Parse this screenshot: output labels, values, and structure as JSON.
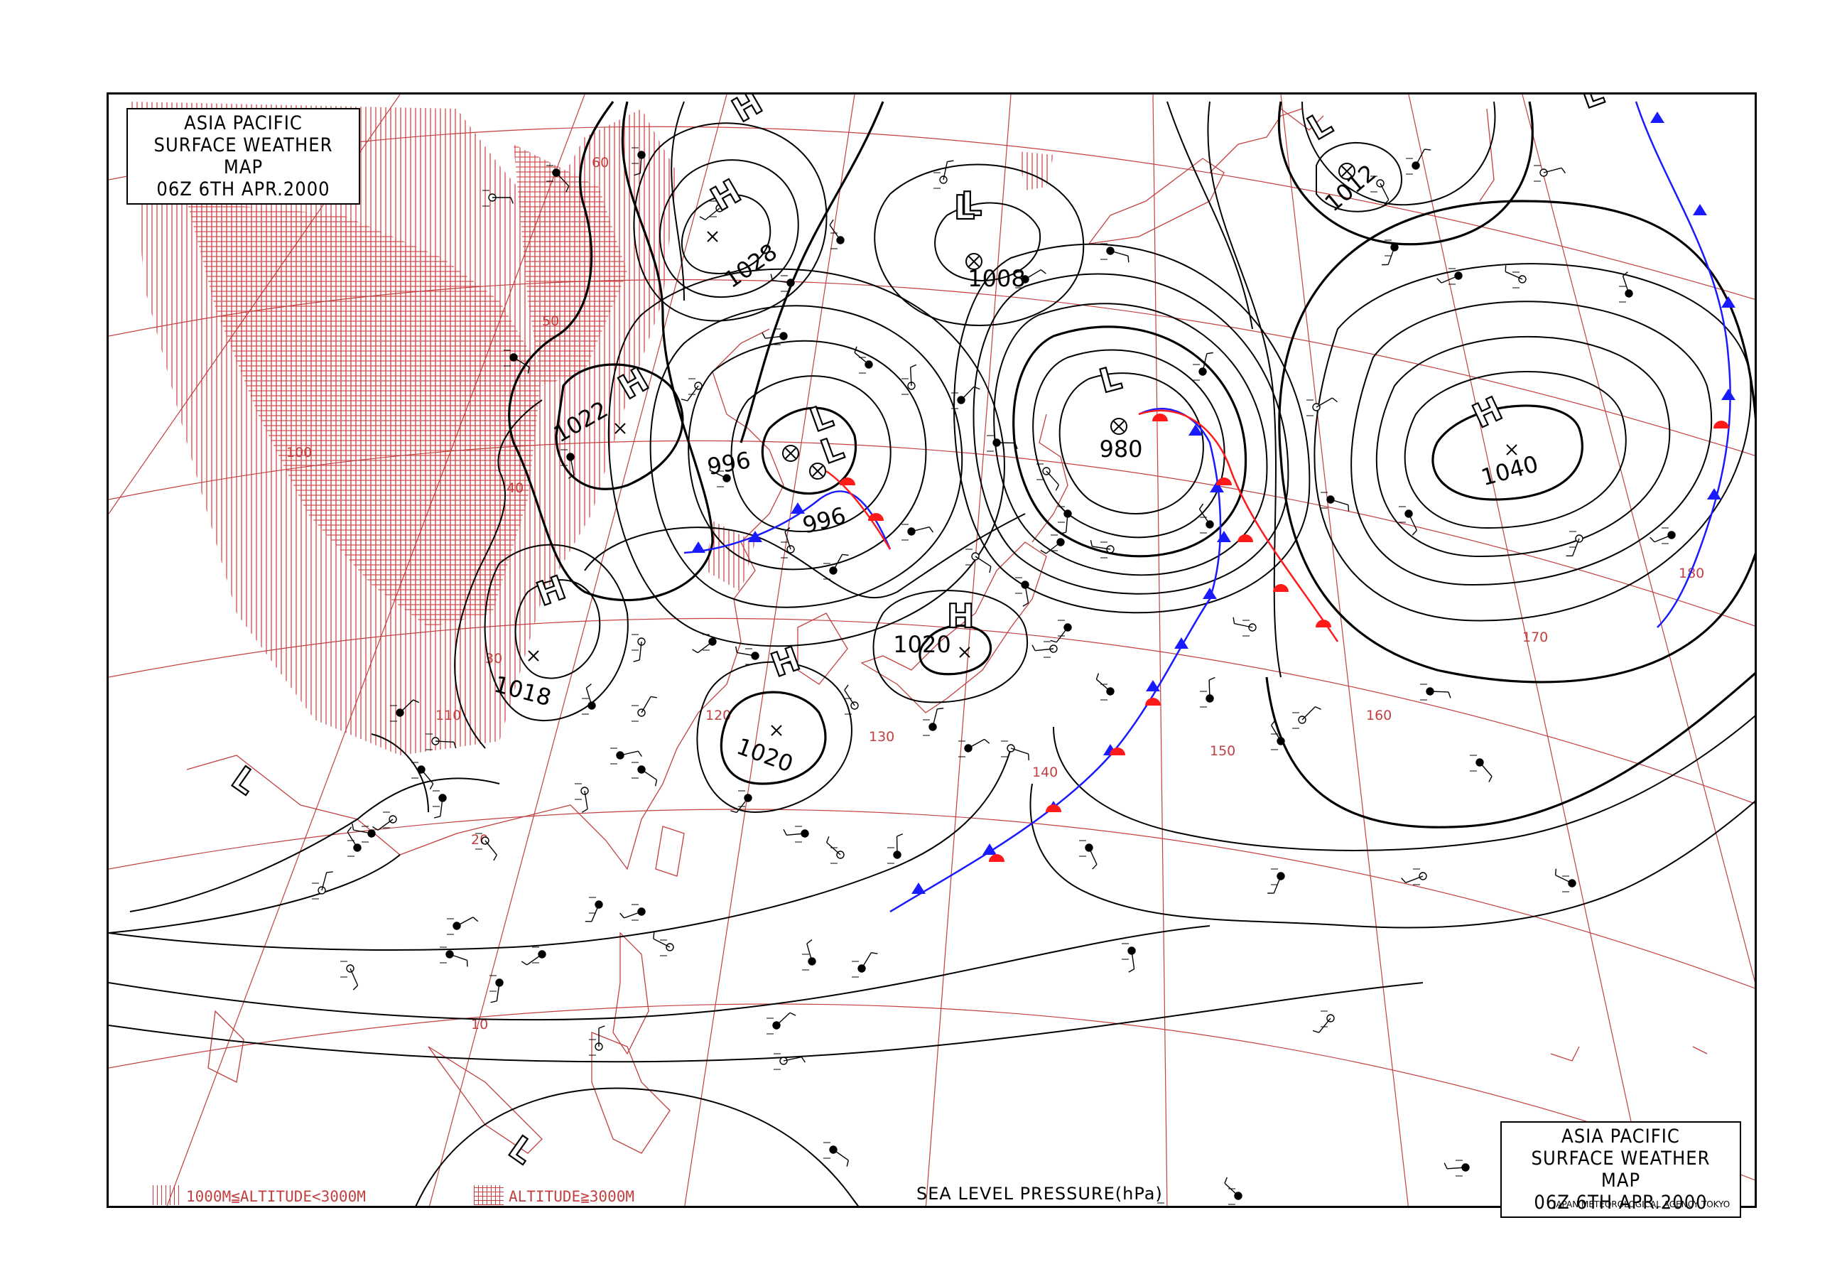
{
  "title": {
    "line1": "ASIA PACIFIC",
    "line2": "SURFACE WEATHER MAP",
    "line3": "06Z   6TH APR.2000"
  },
  "legend": {
    "mid_altitude": "1000M≦ALTITUDE<3000M",
    "high_altitude": "ALTITUDE≧3000M"
  },
  "footer": {
    "field_label": "SEA LEVEL PRESSURE(hPa)",
    "agency": "JAPAN METEOROLOGICAL AGENCY TOKYO"
  },
  "colors": {
    "grid": "#c24040",
    "isobar": "#000000",
    "cold_front": "#1a1aff",
    "warm_front": "#ff1a1a"
  },
  "pressure_systems": [
    {
      "type": "H",
      "value": "1028"
    },
    {
      "type": "L",
      "value": "1008"
    },
    {
      "type": "H",
      "value": "1022"
    },
    {
      "type": "L",
      "value": "996"
    },
    {
      "type": "L",
      "value": "996"
    },
    {
      "type": "L",
      "value": "980"
    },
    {
      "type": "L",
      "value": "1012"
    },
    {
      "type": "H",
      "value": "1040"
    },
    {
      "type": "H",
      "value": "1018"
    },
    {
      "type": "H",
      "value": "1020"
    },
    {
      "type": "H",
      "value": "1020"
    },
    {
      "type": "L",
      "value": ""
    },
    {
      "type": "L",
      "value": ""
    },
    {
      "type": "L",
      "value": ""
    },
    {
      "type": "H",
      "value": ""
    },
    {
      "type": "L",
      "value": ""
    }
  ],
  "grid_labels": {
    "latitudes": [
      "60",
      "50",
      "40",
      "30",
      "20",
      "10"
    ],
    "longitudes": [
      "100",
      "110",
      "120",
      "130",
      "140",
      "150",
      "160",
      "170",
      "180"
    ]
  }
}
